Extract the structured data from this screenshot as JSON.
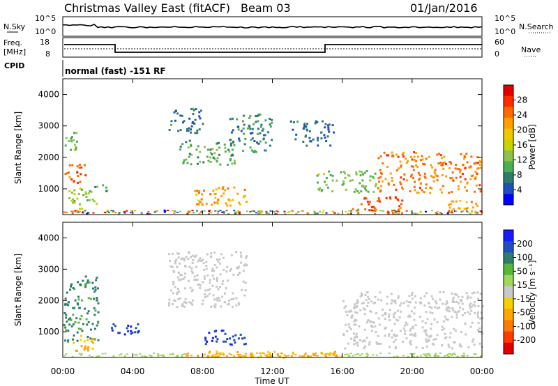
{
  "header": {
    "station": "Christmas Valley East (fitACF)",
    "beam": "Beam 03",
    "date": "01/Jan/2016"
  },
  "sky_panel": {
    "left_label": "N.Sky",
    "right_label": "N.Search",
    "left_ticks": [
      "10^5",
      "10^0"
    ],
    "right_ticks": [
      "10^5",
      "10^0"
    ]
  },
  "freq_panel": {
    "left_label_1": "Freq.",
    "left_label_2": "[MHz]",
    "right_label": "Nave",
    "left_ticks": [
      "18",
      "8"
    ],
    "right_ticks": [
      "60",
      "0"
    ]
  },
  "cpid_panel": {
    "label": "CPID",
    "text": "normal (fast) -151 RF"
  },
  "x_axis": {
    "label": "Time UT",
    "ticks": [
      "00:00",
      "04:00",
      "08:00",
      "12:00",
      "16:00",
      "20:00",
      "00:00"
    ]
  },
  "colorbars": {
    "power": {
      "label": "Power [dB]",
      "ticks": [
        "28",
        "24",
        "20",
        "16",
        "12",
        "8",
        "4"
      ],
      "colors": [
        "#0000ff",
        "#1f4fbf",
        "#2e7d6a",
        "#4caf50",
        "#8bc34a",
        "#c8d400",
        "#f3c600",
        "#ff9f00",
        "#ff6a00",
        "#ff2a00",
        "#e00000"
      ]
    },
    "velocity": {
      "label": "Velocity [m s⁻¹]",
      "ticks": [
        "200",
        "100",
        "50",
        "15",
        "-15",
        "-50",
        "-100",
        "-200"
      ],
      "colors": [
        "#1a1aff",
        "#1f4fbf",
        "#2e7d6a",
        "#55b83a",
        "#9fd85a",
        "#c8c8c8",
        "#f5d000",
        "#ffa500",
        "#ff7a00",
        "#ff3a00",
        "#e00000"
      ]
    }
  },
  "chart_data": [
    {
      "type": "heatmap",
      "title": "Power",
      "xlabel": "Time UT",
      "ylabel": "Slant Range [km]",
      "xlim": [
        "00:00",
        "24:00"
      ],
      "ylim": [
        180,
        4500
      ],
      "y_ticks": [
        1000,
        2000,
        3000,
        4000
      ],
      "colorbar_label": "Power [dB]",
      "colorbar_range": [
        0,
        32
      ],
      "regions": [
        {
          "t": [
            0.0,
            1.4
          ],
          "range": [
            1200,
            1800
          ],
          "level": 26
        },
        {
          "t": [
            0.0,
            0.8
          ],
          "range": [
            2200,
            3000
          ],
          "level": 12
        },
        {
          "t": [
            0.3,
            2.0
          ],
          "range": [
            400,
            1100
          ],
          "level": 14
        },
        {
          "t": [
            1.8,
            2.5
          ],
          "range": [
            900,
            1200
          ],
          "level": 10
        },
        {
          "t": [
            6.0,
            8.0
          ],
          "range": [
            2800,
            3600
          ],
          "level": 6
        },
        {
          "t": [
            6.6,
            9.8
          ],
          "range": [
            1800,
            2600
          ],
          "level": 10
        },
        {
          "t": [
            7.2,
            10.5
          ],
          "range": [
            500,
            1100
          ],
          "level": 22
        },
        {
          "t": [
            9.5,
            12.0
          ],
          "range": [
            2200,
            3400
          ],
          "level": 8
        },
        {
          "t": [
            13.0,
            15.5
          ],
          "range": [
            2400,
            3200
          ],
          "level": 6
        },
        {
          "t": [
            14.5,
            18.0
          ],
          "range": [
            900,
            1600
          ],
          "level": 12
        },
        {
          "t": [
            16.5,
            19.5
          ],
          "range": [
            250,
            800
          ],
          "level": 26
        },
        {
          "t": [
            18.0,
            24.0
          ],
          "range": [
            900,
            2200
          ],
          "level": 24
        },
        {
          "t": [
            22.0,
            24.0
          ],
          "range": [
            200,
            700
          ],
          "level": 22
        }
      ]
    },
    {
      "type": "heatmap",
      "title": "Velocity",
      "xlabel": "Time UT",
      "ylabel": "Slant Range [km]",
      "xlim": [
        "00:00",
        "24:00"
      ],
      "ylim": [
        180,
        4500
      ],
      "y_ticks": [
        1000,
        2000,
        3000,
        4000
      ],
      "colorbar_label": "Velocity [m s⁻¹]",
      "colorbar_range": [
        -250,
        250
      ],
      "regions": [
        {
          "t": [
            0.0,
            2.0
          ],
          "range": [
            700,
            2800
          ],
          "v": 120
        },
        {
          "t": [
            0.5,
            2.0
          ],
          "range": [
            400,
            900
          ],
          "v": -70
        },
        {
          "t": [
            2.5,
            4.5
          ],
          "range": [
            900,
            1300
          ],
          "v": 200
        },
        {
          "t": [
            6.0,
            10.5
          ],
          "range": [
            1800,
            3600
          ],
          "v": 0
        },
        {
          "t": [
            8.0,
            10.5
          ],
          "range": [
            600,
            1100
          ],
          "v": 200
        },
        {
          "t": [
            16.0,
            24.0
          ],
          "range": [
            500,
            2300
          ],
          "v": 0
        },
        {
          "t": [
            8.0,
            16.0
          ],
          "range": [
            200,
            400
          ],
          "v": -60
        }
      ]
    }
  ]
}
